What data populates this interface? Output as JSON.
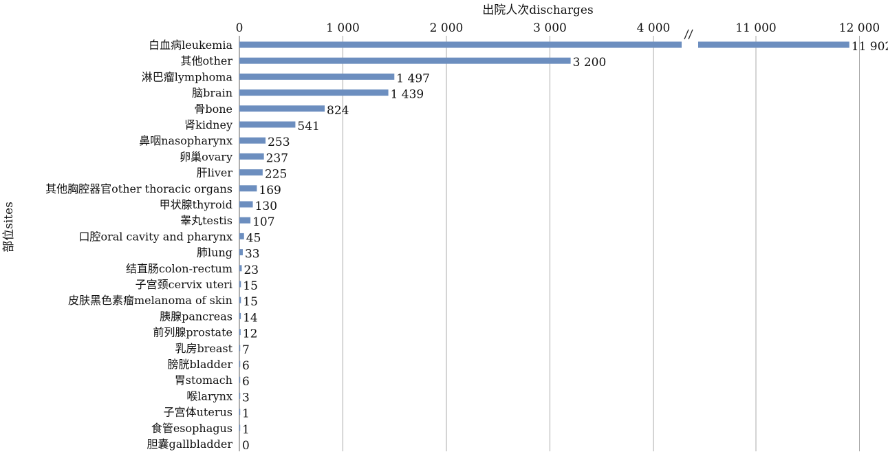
{
  "chart_data": {
    "type": "bar",
    "orientation": "horizontal",
    "xlabel": "出院人次discharges",
    "ylabel": "部位sites",
    "axis_break": {
      "break_between": [
        4250,
        10500
      ],
      "symbol": "//"
    },
    "xlim": [
      0,
      12000
    ],
    "xticks": [
      {
        "value": 0,
        "label": "0"
      },
      {
        "value": 1000,
        "label": "1 000"
      },
      {
        "value": 2000,
        "label": "2 000"
      },
      {
        "value": 3000,
        "label": "3 000"
      },
      {
        "value": 4000,
        "label": "4 000"
      },
      {
        "value": 11000,
        "label": "11 000"
      },
      {
        "value": 12000,
        "label": "12 000"
      }
    ],
    "grid": "vertical",
    "bar_color": "#6c8ebf",
    "categories": [
      "白血病leukemia",
      "其他other",
      "淋巴瘤lymphoma",
      "脑brain",
      "骨bone",
      "肾kidney",
      "鼻咽nasopharynx",
      "卵巢ovary",
      "肝liver",
      "其他胸腔器官other thoracic organs",
      "甲状腺thyroid",
      "睾丸testis",
      "口腔oral cavity and pharynx",
      "肺lung",
      "结直肠colon-rectum",
      "子宫颈cervix uteri",
      "皮肤黑色素瘤melanoma of skin",
      "胰腺pancreas",
      "前列腺prostate",
      "乳房breast",
      "膀胱bladder",
      "胃stomach",
      "喉larynx",
      "子宫体uterus",
      "食管esophagus",
      "胆囊gallbladder"
    ],
    "values": [
      11902,
      3200,
      1497,
      1439,
      824,
      541,
      253,
      237,
      225,
      169,
      130,
      107,
      45,
      33,
      23,
      15,
      15,
      14,
      12,
      7,
      6,
      6,
      3,
      1,
      1,
      0
    ],
    "value_labels": [
      "11 902",
      "3 200",
      "1 497",
      "1 439",
      "824",
      "541",
      "253",
      "237",
      "225",
      "169",
      "130",
      "107",
      "45",
      "33",
      "23",
      "15",
      "15",
      "14",
      "12",
      "7",
      "6",
      "6",
      "3",
      "1",
      "1",
      "0"
    ]
  }
}
